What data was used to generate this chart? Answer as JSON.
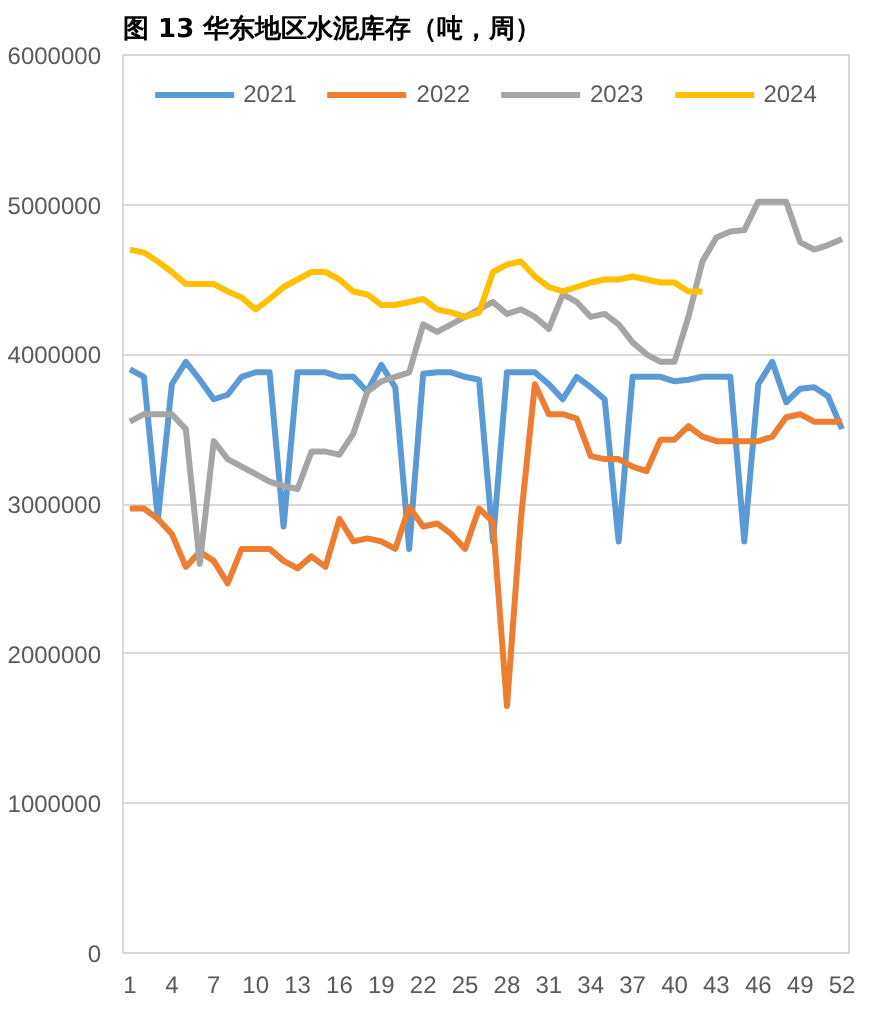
{
  "chart_data": {
    "type": "line",
    "title": "图 13 华东地区水泥库存（吨，周）",
    "categories": [
      "1",
      null,
      null,
      "4",
      null,
      null,
      "7",
      null,
      null,
      "10",
      null,
      null,
      "13",
      null,
      null,
      "16",
      null,
      null,
      "19",
      null,
      null,
      "22",
      null,
      null,
      "25",
      null,
      null,
      "28",
      null,
      null,
      "31",
      null,
      null,
      "34",
      null,
      null,
      "37",
      null,
      null,
      "40",
      null,
      null,
      "43",
      null,
      null,
      "46",
      null,
      null,
      "49",
      null,
      null,
      "52"
    ],
    "series": [
      {
        "name": "2021",
        "color": "#5b9bd5",
        "values": [
          3900000,
          3850000,
          2900000,
          3800000,
          3950000,
          3830000,
          3700000,
          3730000,
          3850000,
          3880000,
          3880000,
          2850000,
          3880000,
          3880000,
          3880000,
          3850000,
          3850000,
          3750000,
          3930000,
          3780000,
          2700000,
          3870000,
          3880000,
          3880000,
          3850000,
          3830000,
          2750000,
          3880000,
          3880000,
          3880000,
          3800000,
          3700000,
          3850000,
          3780000,
          3700000,
          2750000,
          3850000,
          3850000,
          3850000,
          3820000,
          3830000,
          3850000,
          3850000,
          3850000,
          2750000,
          3800000,
          3950000,
          3680000,
          3770000,
          3780000,
          3720000,
          3500000
        ]
      },
      {
        "name": "2022",
        "color": "#ed7d31",
        "values": [
          2970000,
          2970000,
          2900000,
          2800000,
          2580000,
          2680000,
          2620000,
          2470000,
          2700000,
          2700000,
          2700000,
          2620000,
          2570000,
          2650000,
          2580000,
          2900000,
          2750000,
          2770000,
          2750000,
          2700000,
          2980000,
          2850000,
          2870000,
          2800000,
          2700000,
          2970000,
          2880000,
          1650000,
          2900000,
          3800000,
          3600000,
          3600000,
          3570000,
          3320000,
          3300000,
          3300000,
          3250000,
          3220000,
          3430000,
          3430000,
          3520000,
          3450000,
          3420000,
          3420000,
          3420000,
          3420000,
          3450000,
          3580000,
          3600000,
          3550000,
          3550000,
          3550000
        ]
      },
      {
        "name": "2023",
        "color": "#a5a5a5",
        "values": [
          3550000,
          3600000,
          3600000,
          3600000,
          3500000,
          2600000,
          3420000,
          3300000,
          3250000,
          3200000,
          3150000,
          3120000,
          3100000,
          3350000,
          3350000,
          3330000,
          3470000,
          3750000,
          3820000,
          3850000,
          3880000,
          4200000,
          4150000,
          4200000,
          4250000,
          4300000,
          4350000,
          4270000,
          4300000,
          4250000,
          4170000,
          4400000,
          4350000,
          4250000,
          4270000,
          4200000,
          4080000,
          4000000,
          3950000,
          3950000,
          4250000,
          4620000,
          4780000,
          4820000,
          4830000,
          5020000,
          5020000,
          5020000,
          4750000,
          4700000,
          4730000,
          4770000
        ]
      },
      {
        "name": "2024",
        "color": "#ffc000",
        "values": [
          4700000,
          4680000,
          4620000,
          4550000,
          4470000,
          4470000,
          4470000,
          4420000,
          4380000,
          4300000,
          4370000,
          4450000,
          4500000,
          4550000,
          4550000,
          4500000,
          4420000,
          4400000,
          4330000,
          4330000,
          4350000,
          4370000,
          4300000,
          4280000,
          4250000,
          4280000,
          4550000,
          4600000,
          4620000,
          4520000,
          4450000,
          4420000,
          4450000,
          4480000,
          4500000,
          4500000,
          4520000,
          4500000,
          4480000,
          4480000,
          4420000,
          4420000,
          null,
          null,
          null,
          null,
          null,
          null,
          null,
          null,
          null,
          null
        ]
      }
    ],
    "ylim": [
      0,
      6000000
    ],
    "yticks": [
      0,
      1000000,
      2000000,
      3000000,
      4000000,
      5000000,
      6000000
    ],
    "grid": "y",
    "legend": "top",
    "marker": "none",
    "line_style": "solid"
  }
}
